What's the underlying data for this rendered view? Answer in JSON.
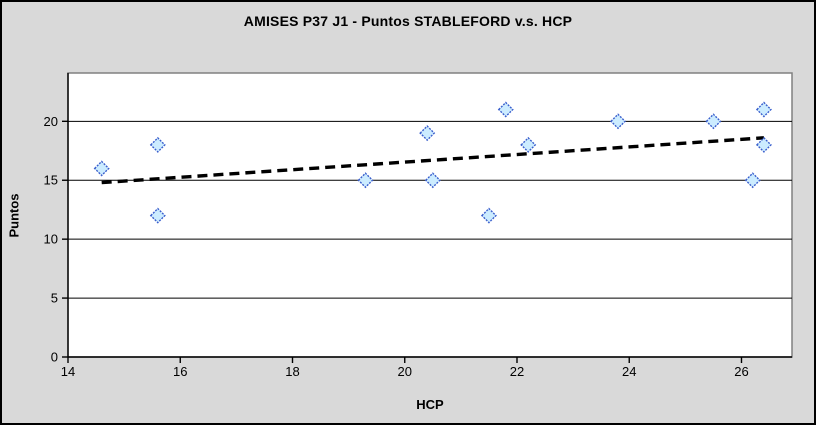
{
  "chart_data": {
    "type": "scatter",
    "title": "AMISES P37 J1 - Puntos STABLEFORD v.s. HCP",
    "xlabel": "HCP",
    "ylabel": "Puntos",
    "xlim": [
      14,
      26.9
    ],
    "ylim": [
      0,
      24.1
    ],
    "x_ticks": [
      14,
      16,
      18,
      20,
      22,
      24,
      26
    ],
    "y_ticks": [
      0,
      5,
      10,
      15,
      20
    ],
    "grid": "horizontal-major",
    "legend": "none",
    "points": [
      {
        "x": 14.6,
        "y": 16
      },
      {
        "x": 15.6,
        "y": 18
      },
      {
        "x": 15.6,
        "y": 12
      },
      {
        "x": 19.3,
        "y": 15
      },
      {
        "x": 20.4,
        "y": 19
      },
      {
        "x": 20.5,
        "y": 15
      },
      {
        "x": 21.5,
        "y": 12
      },
      {
        "x": 21.8,
        "y": 21
      },
      {
        "x": 22.2,
        "y": 18
      },
      {
        "x": 23.8,
        "y": 20
      },
      {
        "x": 25.5,
        "y": 20
      },
      {
        "x": 26.2,
        "y": 15
      },
      {
        "x": 26.4,
        "y": 21
      },
      {
        "x": 26.4,
        "y": 18
      }
    ],
    "trendline": {
      "style": "dashed",
      "x1": 14.6,
      "y1": 14.8,
      "x2": 26.4,
      "y2": 18.6
    },
    "colors": {
      "background": "#d9d9d9",
      "plot_background": "#ffffff",
      "plot_border": "#808080",
      "gridline": "#000000",
      "axis": "#000000",
      "marker_fill": "#ccecff",
      "marker_stroke": "#3a5fcd",
      "trendline": "#000000",
      "text": "#000000"
    }
  }
}
